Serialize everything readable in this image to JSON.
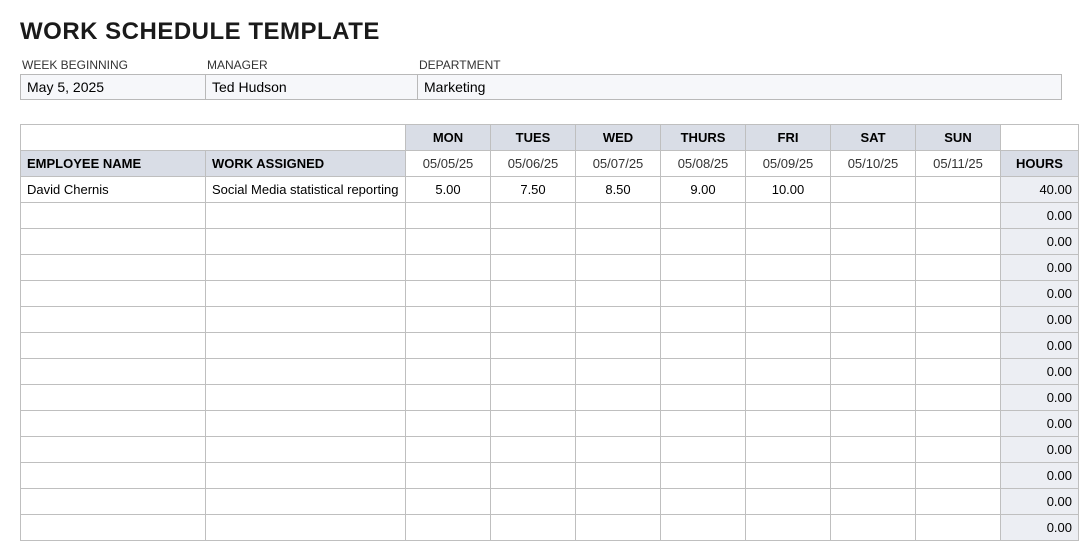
{
  "title": "WORK SCHEDULE TEMPLATE",
  "meta": {
    "labels": {
      "week": "WEEK BEGINNING",
      "manager": "MANAGER",
      "department": "DEPARTMENT"
    },
    "values": {
      "week": "May 5, 2025",
      "manager": "Ted Hudson",
      "department": "Marketing"
    }
  },
  "headers": {
    "employee": "EMPLOYEE NAME",
    "work": "WORK ASSIGNED",
    "hours": "HOURS",
    "days": [
      "MON",
      "TUES",
      "WED",
      "THURS",
      "FRI",
      "SAT",
      "SUN"
    ],
    "dates": [
      "05/05/25",
      "05/06/25",
      "05/07/25",
      "05/08/25",
      "05/09/25",
      "05/10/25",
      "05/11/25"
    ]
  },
  "rows": [
    {
      "name": "David Chernis",
      "work": "Social Media statistical reporting",
      "d": [
        "5.00",
        "7.50",
        "8.50",
        "9.00",
        "10.00",
        "",
        ""
      ],
      "hours": "40.00"
    },
    {
      "name": "",
      "work": "",
      "d": [
        "",
        "",
        "",
        "",
        "",
        "",
        ""
      ],
      "hours": "0.00"
    },
    {
      "name": "",
      "work": "",
      "d": [
        "",
        "",
        "",
        "",
        "",
        "",
        ""
      ],
      "hours": "0.00"
    },
    {
      "name": "",
      "work": "",
      "d": [
        "",
        "",
        "",
        "",
        "",
        "",
        ""
      ],
      "hours": "0.00"
    },
    {
      "name": "",
      "work": "",
      "d": [
        "",
        "",
        "",
        "",
        "",
        "",
        ""
      ],
      "hours": "0.00"
    },
    {
      "name": "",
      "work": "",
      "d": [
        "",
        "",
        "",
        "",
        "",
        "",
        ""
      ],
      "hours": "0.00"
    },
    {
      "name": "",
      "work": "",
      "d": [
        "",
        "",
        "",
        "",
        "",
        "",
        ""
      ],
      "hours": "0.00"
    },
    {
      "name": "",
      "work": "",
      "d": [
        "",
        "",
        "",
        "",
        "",
        "",
        ""
      ],
      "hours": "0.00"
    },
    {
      "name": "",
      "work": "",
      "d": [
        "",
        "",
        "",
        "",
        "",
        "",
        ""
      ],
      "hours": "0.00"
    },
    {
      "name": "",
      "work": "",
      "d": [
        "",
        "",
        "",
        "",
        "",
        "",
        ""
      ],
      "hours": "0.00"
    },
    {
      "name": "",
      "work": "",
      "d": [
        "",
        "",
        "",
        "",
        "",
        "",
        ""
      ],
      "hours": "0.00"
    },
    {
      "name": "",
      "work": "",
      "d": [
        "",
        "",
        "",
        "",
        "",
        "",
        ""
      ],
      "hours": "0.00"
    },
    {
      "name": "",
      "work": "",
      "d": [
        "",
        "",
        "",
        "",
        "",
        "",
        ""
      ],
      "hours": "0.00"
    },
    {
      "name": "",
      "work": "",
      "d": [
        "",
        "",
        "",
        "",
        "",
        "",
        ""
      ],
      "hours": "0.00"
    }
  ],
  "style": {
    "title_color": "#1a1a1a",
    "header_bg": "#d9dde6",
    "hours_bg": "#eceef3",
    "meta_bg": "#f6f7fa",
    "border_color": "#bfbfbf",
    "title_fontsize": 24,
    "cell_fontsize": 13,
    "header_fontsize": 12
  }
}
